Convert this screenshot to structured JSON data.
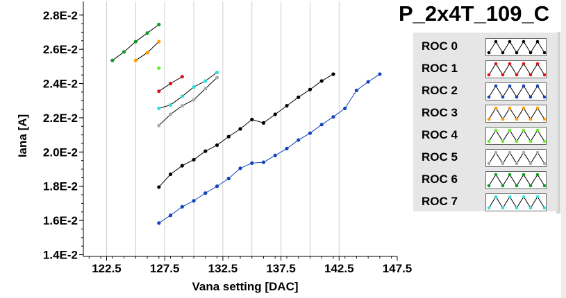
{
  "chart_data": {
    "type": "line",
    "title": "P_2x4T_109_C",
    "xlabel": "Vana setting [DAC]",
    "ylabel": "Iana [A]",
    "xlim": [
      120.5,
      147.5
    ],
    "ylim": [
      0.0139,
      0.0288
    ],
    "x_ticks": [
      "122.5",
      "127.5",
      "132.5",
      "137.5",
      "142.5",
      "147.5"
    ],
    "x_tick_values": [
      122.5,
      127.5,
      132.5,
      137.5,
      142.5,
      147.5
    ],
    "y_ticks": [
      "1.4E-2",
      "1.6E-2",
      "1.8E-2",
      "2.0E-2",
      "2.2E-2",
      "2.4E-2",
      "2.6E-2",
      "2.8E-2"
    ],
    "y_tick_values": [
      0.014,
      0.016,
      0.018,
      0.02,
      0.022,
      0.024,
      0.026,
      0.028
    ],
    "series": [
      {
        "name": "ROC 0",
        "color": "#000000",
        "x": [
          127,
          128,
          129,
          130,
          131,
          132,
          133,
          134,
          135,
          136,
          137,
          138,
          139,
          140,
          141,
          142
        ],
        "y": [
          0.01795,
          0.0187,
          0.0192,
          0.01955,
          0.02005,
          0.0204,
          0.0209,
          0.02135,
          0.0219,
          0.0217,
          0.0222,
          0.0227,
          0.0232,
          0.02365,
          0.02415,
          0.02455
        ]
      },
      {
        "name": "ROC 1",
        "color": "#dd1111",
        "x": [
          127,
          128,
          129
        ],
        "y": [
          0.02355,
          0.024,
          0.0244
        ]
      },
      {
        "name": "ROC 2",
        "color": "#1144bb",
        "x": [
          127,
          128,
          129,
          130,
          131,
          132,
          133,
          134,
          135,
          136,
          137,
          138,
          139,
          140,
          141,
          142,
          143,
          144,
          145,
          146
        ],
        "y": [
          0.01585,
          0.0163,
          0.0168,
          0.01715,
          0.0176,
          0.018,
          0.01845,
          0.01905,
          0.01935,
          0.0194,
          0.0198,
          0.0202,
          0.0207,
          0.0211,
          0.0216,
          0.02205,
          0.02255,
          0.0236,
          0.0241,
          0.02455
        ]
      },
      {
        "name": "ROC 3",
        "color": "#ff9900",
        "x": [
          125,
          126,
          127
        ],
        "y": [
          0.02535,
          0.0258,
          0.02645
        ]
      },
      {
        "name": "ROC 4",
        "color": "#66ee22",
        "x": [
          127
        ],
        "y": [
          0.0249
        ]
      },
      {
        "name": "ROC 5",
        "color": "#aaaaaa",
        "x": [
          127,
          128,
          129,
          130,
          131,
          132
        ],
        "y": [
          0.02155,
          0.0222,
          0.0227,
          0.02305,
          0.0237,
          0.02435
        ]
      },
      {
        "name": "ROC 6",
        "color": "#119922",
        "x": [
          123,
          124,
          125,
          126,
          127
        ],
        "y": [
          0.02535,
          0.02585,
          0.02645,
          0.02695,
          0.02745
        ]
      },
      {
        "name": "ROC 7",
        "color": "#33dddd",
        "x": [
          127,
          128,
          129,
          130,
          131,
          132
        ],
        "y": [
          0.02255,
          0.02275,
          0.02325,
          0.0238,
          0.02415,
          0.02465
        ]
      }
    ],
    "grid": {
      "x": true,
      "y": false
    },
    "legend": "right"
  },
  "legend_items": [
    "ROC 0",
    "ROC 1",
    "ROC 2",
    "ROC 3",
    "ROC 4",
    "ROC 5",
    "ROC 6",
    "ROC 7"
  ]
}
